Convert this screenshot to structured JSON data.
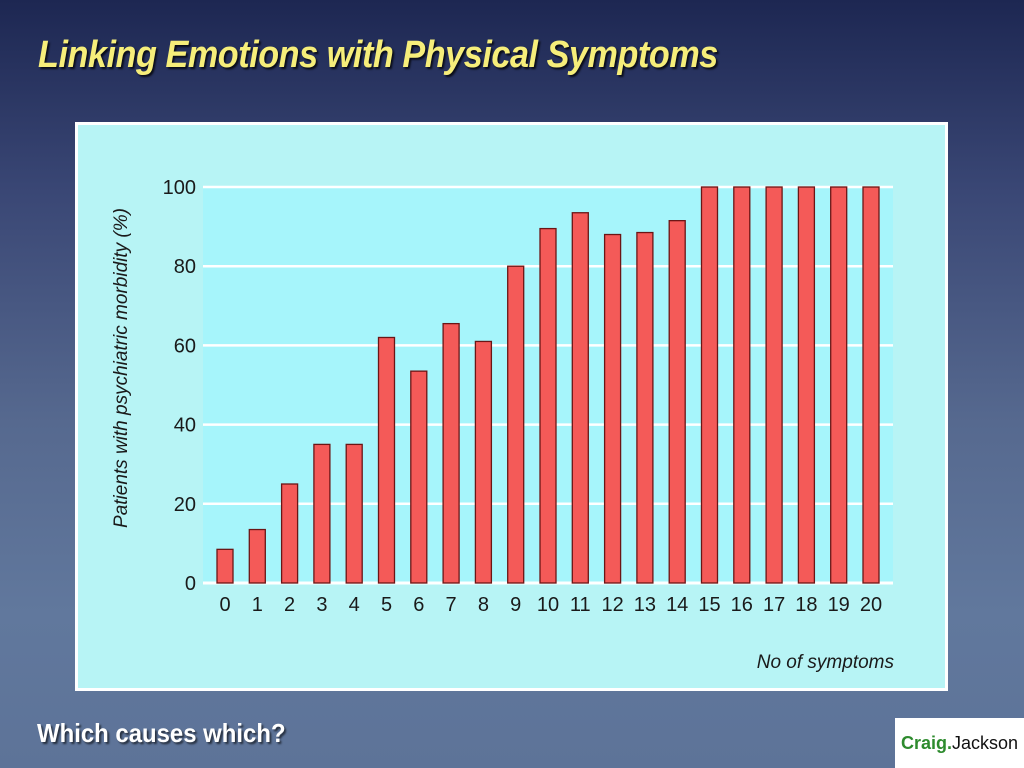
{
  "slide": {
    "title": "Linking Emotions with Physical Symptoms",
    "footer": "Which causes which?"
  },
  "logo": {
    "first": "Craig.",
    "last": "Jackson"
  },
  "colors": {
    "bar_fill": "#f45a58",
    "bar_stroke": "#6b1515",
    "plot_background": "#a6f5fb",
    "panel_background": "#b7f4f5",
    "gridline": "#ffffff",
    "title": "#f6ee7a"
  },
  "chart_data": {
    "type": "bar",
    "title": "",
    "xlabel": "No of symptoms",
    "ylabel": "Patients with psychiatric morbidity (%)",
    "categories": [
      "0",
      "1",
      "2",
      "3",
      "4",
      "5",
      "6",
      "7",
      "8",
      "9",
      "10",
      "11",
      "12",
      "13",
      "14",
      "15",
      "16",
      "17",
      "18",
      "19",
      "20"
    ],
    "values": [
      8.5,
      13.5,
      25,
      35,
      35,
      62,
      53.5,
      65.5,
      61,
      80,
      89.5,
      93.5,
      88,
      88.5,
      91.5,
      100,
      100,
      100,
      100,
      100,
      100
    ],
    "ylim": [
      0,
      100
    ],
    "yticks": [
      "0",
      "20",
      "40",
      "60",
      "80",
      "100"
    ],
    "ytick_values": [
      0,
      20,
      40,
      60,
      80,
      100
    ],
    "grid": "horizontal",
    "legend": "none"
  }
}
